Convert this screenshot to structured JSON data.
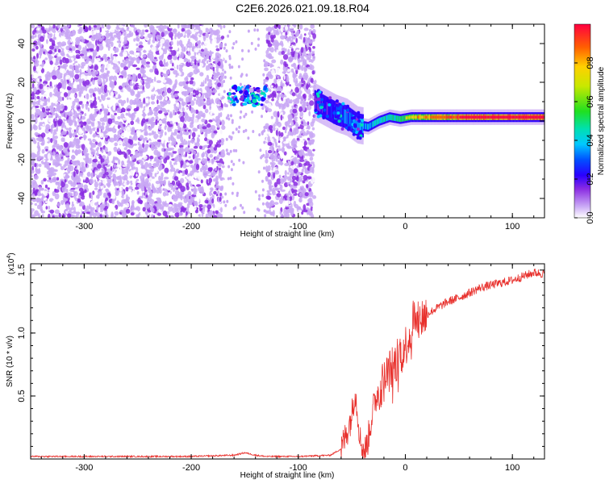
{
  "title": "C2E6.2026.021.09.18.R04",
  "chart_data": [
    {
      "type": "heatmap",
      "xlabel": "Height of straight line (km)",
      "ylabel": "Frequency (Hz)",
      "xlim": [
        -350,
        130
      ],
      "ylim": [
        -50,
        50
      ],
      "x_ticks": [
        -300,
        -200,
        -100,
        0,
        100
      ],
      "x_tick_labels": [
        "-300",
        "-200",
        "-100",
        "0",
        "100"
      ],
      "y_ticks": [
        -40,
        -20,
        0,
        20,
        40
      ],
      "y_tick_labels": [
        "-40",
        "-20",
        "0",
        "20",
        "40"
      ],
      "colorbar": {
        "label": "Normalized spectral amplitude",
        "range": [
          0,
          1
        ],
        "ticks": [
          0.0,
          0.2,
          0.4,
          0.6,
          0.8
        ],
        "tick_labels": [
          "0.0",
          "0.2",
          "0.4",
          "0.6",
          "0.8"
        ]
      },
      "signal_trace": {
        "x": [
          -85,
          -75,
          -65,
          -55,
          -45,
          -35,
          -25,
          -15,
          -5,
          5,
          20,
          40,
          60,
          80,
          100,
          120,
          130
        ],
        "y": [
          10,
          7,
          4,
          2,
          -2,
          -3,
          0,
          2,
          1,
          2,
          2,
          2,
          2,
          2,
          2,
          2,
          2
        ]
      },
      "noise_regions": [
        [
          -350,
          -170
        ],
        [
          -130,
          -85
        ]
      ],
      "burst": {
        "x": [
          -165,
          -130
        ],
        "y": [
          8,
          18
        ]
      }
    },
    {
      "type": "line",
      "xlabel": "Height of straight line (km)",
      "ylabel": "SNR (10 * v/v)",
      "scale_label": "(x10",
      "scale_exponent": "4",
      "scale_close": ")",
      "xlim": [
        -350,
        130
      ],
      "ylim": [
        0,
        1.55
      ],
      "x_ticks": [
        -300,
        -200,
        -100,
        0,
        100
      ],
      "x_tick_labels": [
        "-300",
        "-200",
        "-100",
        "0",
        "100"
      ],
      "y_ticks": [
        0.5,
        1.0,
        1.5
      ],
      "y_tick_labels": [
        "0.5",
        "1.0",
        "1.5"
      ],
      "color": "#e8302c",
      "series": [
        {
          "x": [
            -350,
            -200,
            -160,
            -150,
            -140,
            -130,
            -100,
            -70,
            -60,
            -55,
            -50,
            -47,
            -45,
            -42,
            -38,
            -35,
            -30,
            -25,
            -20,
            -15,
            -10,
            -5,
            0,
            5,
            8,
            10,
            15,
            20,
            30,
            40,
            50,
            60,
            70,
            80,
            90,
            100,
            110,
            120,
            130
          ],
          "y": [
            0.02,
            0.02,
            0.03,
            0.05,
            0.03,
            0.02,
            0.02,
            0.03,
            0.08,
            0.2,
            0.35,
            0.55,
            0.4,
            0.15,
            0.05,
            0.15,
            0.4,
            0.55,
            0.62,
            0.7,
            0.75,
            0.85,
            0.9,
            1.0,
            1.15,
            1.05,
            1.12,
            1.15,
            1.2,
            1.25,
            1.28,
            1.32,
            1.36,
            1.38,
            1.4,
            1.42,
            1.45,
            1.48,
            1.47
          ]
        }
      ]
    }
  ]
}
